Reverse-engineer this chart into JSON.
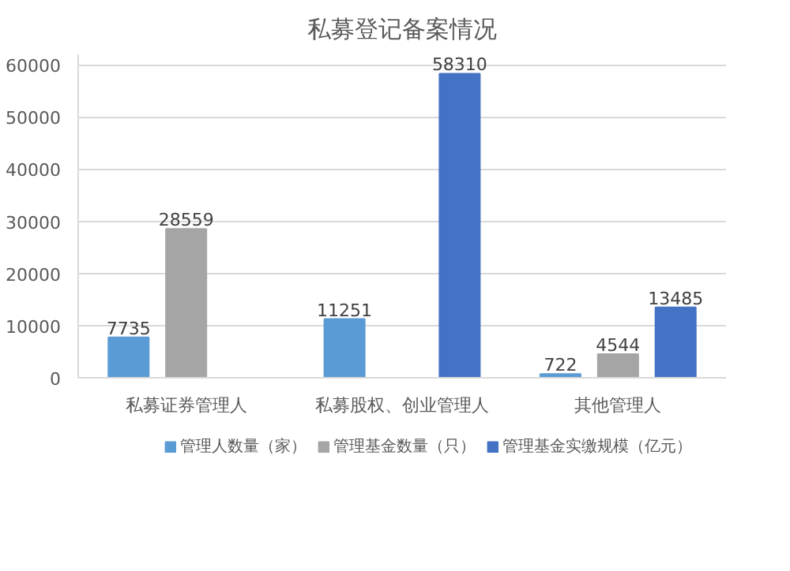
{
  "chart_data": {
    "type": "bar",
    "title": "私募登记备案情况",
    "categories": [
      "私募证券管理人",
      "私募股权、创业管理人",
      "其他管理人"
    ],
    "series": [
      {
        "name": "管理人数量（家）",
        "color": "#5b9bd5",
        "values": [
          7735,
          11251,
          722
        ],
        "value_labels": [
          "7735",
          "11251",
          "722"
        ]
      },
      {
        "name": "管理基金数量（只）",
        "color": "#a5a5a5",
        "values": [
          28559,
          null,
          4544
        ],
        "value_labels": [
          "28559",
          null,
          "4544"
        ]
      },
      {
        "name": "管理基金实缴规模（亿元）",
        "color": "#4472c4",
        "values": [
          null,
          58310,
          13485
        ],
        "value_labels": [
          null,
          "58310",
          "13485"
        ]
      }
    ],
    "ylim": [
      0,
      62000
    ],
    "yticks": [
      0,
      10000,
      20000,
      30000,
      40000,
      50000,
      60000
    ],
    "grid": "y",
    "legend": "bottom"
  }
}
